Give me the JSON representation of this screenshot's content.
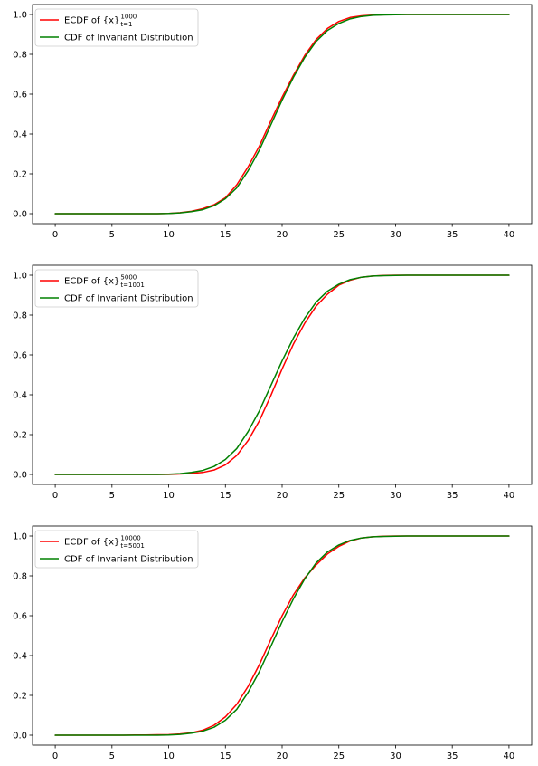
{
  "chart_data": [
    {
      "type": "line",
      "title": "",
      "xlabel": "",
      "ylabel": "",
      "xlim": [
        -2,
        42
      ],
      "ylim": [
        -0.05,
        1.05
      ],
      "grid": false,
      "legend_position": "top-left",
      "xticks": [
        "0",
        "5",
        "10",
        "15",
        "20",
        "25",
        "30",
        "35",
        "40"
      ],
      "yticks": [
        "0.0",
        "0.2",
        "0.4",
        "0.6",
        "0.8",
        "1.0"
      ],
      "x": [
        0,
        1,
        2,
        3,
        4,
        5,
        6,
        7,
        8,
        9,
        10,
        11,
        12,
        13,
        14,
        15,
        16,
        17,
        18,
        19,
        20,
        21,
        22,
        23,
        24,
        25,
        26,
        27,
        28,
        29,
        30,
        31,
        32,
        33,
        34,
        35,
        36,
        37,
        38,
        39,
        40
      ],
      "series": [
        {
          "name": "ECDF of {x}",
          "legend_prefix": "ECDF of {x}",
          "legend_sup": "1000",
          "legend_sub": "t=1",
          "color": "#ff0000",
          "values": [
            0,
            0,
            0,
            0,
            0,
            0,
            0,
            0,
            0,
            0,
            0.001,
            0.005,
            0.012,
            0.025,
            0.045,
            0.08,
            0.145,
            0.235,
            0.34,
            0.465,
            0.585,
            0.695,
            0.795,
            0.875,
            0.93,
            0.965,
            0.985,
            0.993,
            0.997,
            0.999,
            1,
            1,
            1,
            1,
            1,
            1,
            1,
            1,
            1,
            1,
            1
          ]
        },
        {
          "name": "CDF of Invariant Distribution",
          "legend_prefix": "CDF of Invariant Distribution",
          "color": "#008000",
          "values": [
            0,
            0,
            0,
            0,
            0,
            0,
            0,
            0,
            0,
            0,
            0.001,
            0.004,
            0.01,
            0.02,
            0.04,
            0.075,
            0.13,
            0.215,
            0.32,
            0.445,
            0.57,
            0.685,
            0.785,
            0.865,
            0.92,
            0.955,
            0.978,
            0.99,
            0.996,
            0.998,
            0.999,
            1,
            1,
            1,
            1,
            1,
            1,
            1,
            1,
            1,
            1
          ]
        }
      ]
    },
    {
      "type": "line",
      "title": "",
      "xlabel": "",
      "ylabel": "",
      "xlim": [
        -2,
        42
      ],
      "ylim": [
        -0.05,
        1.05
      ],
      "grid": false,
      "legend_position": "top-left",
      "xticks": [
        "0",
        "5",
        "10",
        "15",
        "20",
        "25",
        "30",
        "35",
        "40"
      ],
      "yticks": [
        "0.0",
        "0.2",
        "0.4",
        "0.6",
        "0.8",
        "1.0"
      ],
      "x": [
        0,
        1,
        2,
        3,
        4,
        5,
        6,
        7,
        8,
        9,
        10,
        11,
        12,
        13,
        14,
        15,
        16,
        17,
        18,
        19,
        20,
        21,
        22,
        23,
        24,
        25,
        26,
        27,
        28,
        29,
        30,
        31,
        32,
        33,
        34,
        35,
        36,
        37,
        38,
        39,
        40
      ],
      "series": [
        {
          "name": "ECDF of {x}",
          "legend_prefix": "ECDF of {x}",
          "legend_sup": "5000",
          "legend_sub": "t=1001",
          "color": "#ff0000",
          "values": [
            0,
            0,
            0,
            0,
            0,
            0,
            0,
            0,
            0,
            0,
            0,
            0.002,
            0.005,
            0.01,
            0.022,
            0.048,
            0.095,
            0.17,
            0.27,
            0.395,
            0.53,
            0.655,
            0.76,
            0.845,
            0.905,
            0.95,
            0.975,
            0.99,
            0.996,
            0.999,
            1,
            1,
            1,
            1,
            1,
            1,
            1,
            1,
            1,
            1,
            1
          ]
        },
        {
          "name": "CDF of Invariant Distribution",
          "legend_prefix": "CDF of Invariant Distribution",
          "color": "#008000",
          "values": [
            0,
            0,
            0,
            0,
            0,
            0,
            0,
            0,
            0,
            0,
            0.001,
            0.004,
            0.01,
            0.02,
            0.04,
            0.075,
            0.13,
            0.215,
            0.32,
            0.445,
            0.57,
            0.685,
            0.785,
            0.865,
            0.92,
            0.955,
            0.978,
            0.99,
            0.996,
            0.998,
            0.999,
            1,
            1,
            1,
            1,
            1,
            1,
            1,
            1,
            1,
            1
          ]
        }
      ]
    },
    {
      "type": "line",
      "title": "",
      "xlabel": "",
      "ylabel": "",
      "xlim": [
        -2,
        42
      ],
      "ylim": [
        -0.05,
        1.05
      ],
      "grid": false,
      "legend_position": "top-left",
      "xticks": [
        "0",
        "5",
        "10",
        "15",
        "20",
        "25",
        "30",
        "35",
        "40"
      ],
      "yticks": [
        "0.0",
        "0.2",
        "0.4",
        "0.6",
        "0.8",
        "1.0"
      ],
      "x": [
        0,
        1,
        2,
        3,
        4,
        5,
        6,
        7,
        8,
        9,
        10,
        11,
        12,
        13,
        14,
        15,
        16,
        17,
        18,
        19,
        20,
        21,
        22,
        23,
        24,
        25,
        26,
        27,
        28,
        29,
        30,
        31,
        32,
        33,
        34,
        35,
        36,
        37,
        38,
        39,
        40
      ],
      "series": [
        {
          "name": "ECDF of {x}",
          "legend_prefix": "ECDF of {x}",
          "legend_sup": "10000",
          "legend_sub": "t=5001",
          "color": "#ff0000",
          "values": [
            0,
            0,
            0,
            0,
            0,
            0,
            0,
            0.001,
            0.001,
            0.002,
            0.003,
            0.006,
            0.012,
            0.025,
            0.05,
            0.092,
            0.155,
            0.245,
            0.355,
            0.48,
            0.6,
            0.705,
            0.79,
            0.855,
            0.91,
            0.948,
            0.975,
            0.99,
            0.996,
            0.999,
            1,
            1,
            1,
            1,
            1,
            1,
            1,
            1,
            1,
            1,
            1
          ]
        },
        {
          "name": "CDF of Invariant Distribution",
          "legend_prefix": "CDF of Invariant Distribution",
          "color": "#008000",
          "values": [
            0,
            0,
            0,
            0,
            0,
            0,
            0,
            0,
            0,
            0,
            0.001,
            0.004,
            0.01,
            0.02,
            0.04,
            0.075,
            0.13,
            0.215,
            0.32,
            0.445,
            0.57,
            0.685,
            0.785,
            0.865,
            0.92,
            0.955,
            0.978,
            0.99,
            0.996,
            0.998,
            0.999,
            1,
            1,
            1,
            1,
            1,
            1,
            1,
            1,
            1,
            1
          ]
        }
      ]
    }
  ]
}
